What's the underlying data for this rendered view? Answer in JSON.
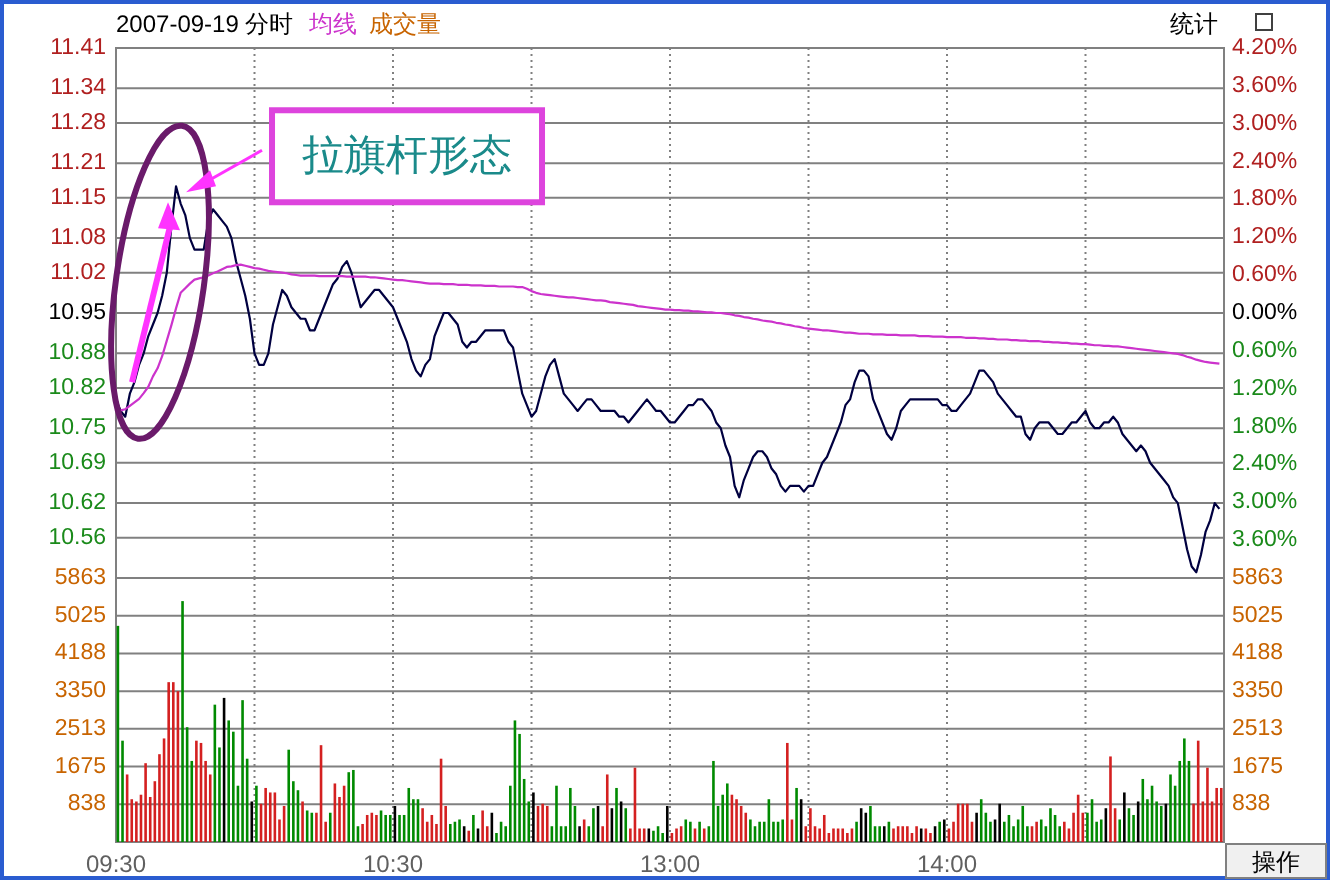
{
  "chart_data": [
    {
      "type": "line",
      "title": "2007-09-19 分时",
      "legend": "top left",
      "grid": true,
      "tick_labels": "y",
      "categories": [
        null,
        null,
        null,
        null,
        null,
        null,
        null,
        null,
        null,
        null,
        null,
        null,
        null,
        null,
        null,
        null,
        null,
        null,
        null,
        null,
        null,
        null,
        null,
        null,
        null,
        null,
        null,
        null,
        null,
        null,
        null,
        null,
        null,
        null,
        null,
        null,
        null,
        null,
        null,
        null,
        null,
        null,
        null,
        null,
        null,
        null,
        null,
        null,
        null,
        null,
        null,
        null,
        null,
        null,
        null,
        null,
        null,
        null,
        null,
        null,
        null,
        null,
        null,
        null,
        null,
        null,
        null,
        null,
        null,
        null,
        null,
        null,
        null,
        null,
        null,
        null,
        null,
        null,
        null,
        null,
        null,
        null,
        null,
        null,
        null,
        null,
        null,
        null,
        null,
        null,
        null,
        null,
        null,
        null,
        null,
        null,
        null,
        null,
        null,
        null,
        null,
        null,
        null,
        null,
        null,
        null,
        null,
        null,
        null,
        null,
        null,
        null,
        null,
        null,
        null,
        null,
        null,
        null,
        null,
        null,
        null,
        null,
        null,
        null,
        null,
        null,
        null,
        null,
        null,
        null,
        null,
        null,
        null,
        null,
        null,
        null,
        null,
        null,
        null,
        null,
        null,
        null,
        null,
        null,
        null,
        null,
        null,
        null,
        null,
        null,
        null,
        null,
        null,
        null,
        null,
        null,
        null,
        null,
        null,
        null,
        null,
        null,
        null,
        null,
        null,
        null,
        null,
        null,
        null,
        null,
        null,
        null,
        null,
        null,
        null,
        null,
        null,
        null,
        null,
        null,
        null,
        null,
        null,
        null,
        null,
        null,
        null,
        null,
        null,
        null,
        null,
        null,
        null,
        null,
        null,
        null,
        null,
        null,
        null,
        null,
        null,
        null,
        null,
        null,
        null,
        null,
        null,
        null,
        null,
        null,
        null,
        null,
        null,
        null,
        null,
        null,
        null,
        null,
        null,
        null,
        null,
        null,
        null,
        null,
        null,
        null,
        null,
        null,
        null,
        null,
        null,
        null,
        null,
        null,
        null,
        null,
        null,
        null,
        null,
        null
      ],
      "ylim": [
        10.49,
        11.41
      ],
      "yticks": [
        11.41,
        11.34,
        11.28,
        11.21,
        11.15,
        11.08,
        11.02,
        10.95,
        10.88,
        10.82,
        10.75,
        10.69,
        10.62,
        10.56
      ],
      "y2lim": [
        -4.2,
        4.2
      ],
      "y2ticks": [
        {
          "value": 4.2,
          "label": "4.20%"
        },
        {
          "value": 3.6,
          "label": "3.60%"
        },
        {
          "value": 3.0,
          "label": "3.00%"
        },
        {
          "value": 2.4,
          "label": "2.40%"
        },
        {
          "value": 1.8,
          "label": "1.80%"
        },
        {
          "value": 1.2,
          "label": "1.20%"
        },
        {
          "value": 0.6,
          "label": "0.60%"
        },
        {
          "value": 0,
          "label": "0.00%"
        },
        {
          "value": -0.6,
          "label": "0.60%"
        },
        {
          "value": -1.2,
          "label": "1.20%"
        },
        {
          "value": -1.8,
          "label": "1.80%"
        },
        {
          "value": -2.4,
          "label": "2.40%"
        },
        {
          "value": -3.0,
          "label": "3.00%"
        },
        {
          "value": -3.6,
          "label": "3.60%"
        }
      ],
      "series": [
        {
          "color": "#000040",
          "values": [
            10.8,
            10.78,
            10.77,
            10.81,
            10.83,
            10.86,
            10.88,
            10.91,
            10.93,
            10.95,
            10.98,
            11.02,
            11.1,
            11.17,
            11.14,
            11.12,
            11.08,
            11.06,
            11.06,
            11.06,
            11.11,
            11.13,
            11.12,
            11.11,
            11.1,
            11.08,
            11.04,
            11.01,
            10.98,
            10.94,
            10.88,
            10.86,
            10.86,
            10.88,
            10.93,
            10.96,
            10.99,
            10.98,
            10.96,
            10.95,
            10.94,
            10.94,
            10.92,
            10.92,
            10.94,
            10.96,
            10.98,
            11.0,
            11.01,
            11.03,
            11.04,
            11.02,
            10.99,
            10.96,
            10.97,
            10.98,
            10.99,
            10.99,
            10.98,
            10.97,
            10.96,
            10.94,
            10.92,
            10.9,
            10.87,
            10.85,
            10.84,
            10.86,
            10.87,
            10.91,
            10.93,
            10.95,
            10.95,
            10.94,
            10.93,
            10.9,
            10.89,
            10.9,
            10.9,
            10.91,
            10.92,
            10.92,
            10.92,
            10.92,
            10.92,
            10.9,
            10.89,
            10.85,
            10.81,
            10.79,
            10.77,
            10.78,
            10.81,
            10.84,
            10.86,
            10.87,
            10.84,
            10.81,
            10.8,
            10.79,
            10.78,
            10.79,
            10.8,
            10.8,
            10.79,
            10.78,
            10.78,
            10.78,
            10.78,
            10.77,
            10.77,
            10.76,
            10.77,
            10.78,
            10.79,
            10.8,
            10.79,
            10.78,
            10.78,
            10.77,
            10.76,
            10.76,
            10.77,
            10.78,
            10.79,
            10.79,
            10.8,
            10.8,
            10.79,
            10.78,
            10.76,
            10.75,
            10.72,
            10.7,
            10.65,
            10.63,
            10.66,
            10.68,
            10.7,
            10.71,
            10.71,
            10.7,
            10.68,
            10.67,
            10.65,
            10.64,
            10.65,
            10.65,
            10.65,
            10.64,
            10.65,
            10.65,
            10.67,
            10.69,
            10.7,
            10.72,
            10.74,
            10.76,
            10.79,
            10.8,
            10.83,
            10.85,
            10.85,
            10.84,
            10.8,
            10.78,
            10.76,
            10.74,
            10.73,
            10.75,
            10.78,
            10.79,
            10.8,
            10.8,
            10.8,
            10.8,
            10.8,
            10.8,
            10.8,
            10.79,
            10.79,
            10.78,
            10.78,
            10.79,
            10.8,
            10.81,
            10.83,
            10.85,
            10.85,
            10.84,
            10.83,
            10.81,
            10.8,
            10.79,
            10.78,
            10.77,
            10.77,
            10.74,
            10.73,
            10.75,
            10.76,
            10.76,
            10.76,
            10.75,
            10.74,
            10.74,
            10.75,
            10.76,
            10.76,
            10.77,
            10.78,
            10.76,
            10.75,
            10.75,
            10.76,
            10.76,
            10.77,
            10.76,
            10.74,
            10.73,
            10.72,
            10.71,
            10.72,
            10.71,
            10.69,
            10.68,
            10.67,
            10.66,
            10.65,
            10.63,
            10.62,
            10.58,
            10.54,
            10.51,
            10.5,
            10.53,
            10.57,
            10.59,
            10.62,
            10.61
          ]
        },
        {
          "name": "均线",
          "color": "#cc33cc",
          "values": [
            10.781,
            10.781,
            10.783,
            10.789,
            10.795,
            10.801,
            10.811,
            10.822,
            10.84,
            10.854,
            10.875,
            10.902,
            10.929,
            10.958,
            10.985,
            10.993,
            11.001,
            11.008,
            11.01,
            11.012,
            11.015,
            11.019,
            11.022,
            11.026,
            11.03,
            11.031,
            11.033,
            11.034,
            11.032,
            11.03,
            11.028,
            11.027,
            11.025,
            11.023,
            11.022,
            11.021,
            11.02,
            11.019,
            11.017,
            11.016,
            11.015,
            11.015,
            11.015,
            11.015,
            11.014,
            11.014,
            11.014,
            11.014,
            11.014,
            11.014,
            11.013,
            11.013,
            11.013,
            11.013,
            11.013,
            11.012,
            11.012,
            11.011,
            11.01,
            11.009,
            11.008,
            11.007,
            11.007,
            11.006,
            11.005,
            11.004,
            11.003,
            11.002,
            11.001,
            11.001,
            11.001,
            11.0,
            11.0,
            11.0,
            10.999,
            10.999,
            10.999,
            10.998,
            10.998,
            10.998,
            10.997,
            10.997,
            10.997,
            10.996,
            10.996,
            10.996,
            10.996,
            10.995,
            10.995,
            10.992,
            10.988,
            10.985,
            10.983,
            10.982,
            10.981,
            10.98,
            10.979,
            10.978,
            10.977,
            10.977,
            10.976,
            10.975,
            10.974,
            10.973,
            10.972,
            10.972,
            10.971,
            10.969,
            10.968,
            10.967,
            10.966,
            10.965,
            10.964,
            10.962,
            10.961,
            10.96,
            10.959,
            10.958,
            10.957,
            10.956,
            10.956,
            10.955,
            10.955,
            10.954,
            10.954,
            10.953,
            10.953,
            10.952,
            10.951,
            10.951,
            10.95,
            10.95,
            10.949,
            10.948,
            10.946,
            10.945,
            10.943,
            10.942,
            10.94,
            10.939,
            10.937,
            10.936,
            10.935,
            10.933,
            10.932,
            10.93,
            10.929,
            10.927,
            10.926,
            10.924,
            10.923,
            10.922,
            10.921,
            10.92,
            10.92,
            10.919,
            10.918,
            10.917,
            10.916,
            10.916,
            10.915,
            10.914,
            10.914,
            10.914,
            10.913,
            10.913,
            10.913,
            10.912,
            10.912,
            10.912,
            10.911,
            10.911,
            10.911,
            10.911,
            10.91,
            10.91,
            10.91,
            10.909,
            10.909,
            10.909,
            10.908,
            10.908,
            10.908,
            10.908,
            10.907,
            10.907,
            10.907,
            10.906,
            10.906,
            10.905,
            10.905,
            10.904,
            10.904,
            10.904,
            10.903,
            10.903,
            10.902,
            10.902,
            10.901,
            10.901,
            10.901,
            10.9,
            10.9,
            10.899,
            10.899,
            10.898,
            10.898,
            10.897,
            10.897,
            10.896,
            10.896,
            10.895,
            10.894,
            10.894,
            10.893,
            10.893,
            10.892,
            10.892,
            10.891,
            10.89,
            10.889,
            10.888,
            10.887,
            10.886,
            10.885,
            10.884,
            10.883,
            10.882,
            10.881,
            10.88,
            10.879,
            10.877,
            10.874,
            10.872,
            10.869,
            10.867,
            10.865,
            10.864,
            10.863,
            10.862
          ]
        }
      ],
      "annotations": [
        "拉旗杆形态",
        "统计"
      ]
    },
    {
      "type": "bar",
      "grid": true,
      "categories": [
        "09:30",
        null,
        null,
        null,
        null,
        null,
        null,
        null,
        null,
        null,
        null,
        null,
        null,
        null,
        null,
        null,
        null,
        null,
        null,
        null,
        null,
        null,
        null,
        null,
        null,
        null,
        null,
        null,
        null,
        null,
        null,
        null,
        null,
        null,
        null,
        null,
        null,
        null,
        null,
        null,
        null,
        null,
        null,
        null,
        null,
        null,
        null,
        null,
        null,
        null,
        null,
        null,
        null,
        null,
        null,
        null,
        null,
        null,
        null,
        null,
        "10:30",
        null,
        null,
        null,
        null,
        null,
        null,
        null,
        null,
        null,
        null,
        null,
        null,
        null,
        null,
        null,
        null,
        null,
        null,
        null,
        null,
        null,
        null,
        null,
        null,
        null,
        null,
        null,
        null,
        null,
        null,
        null,
        null,
        null,
        null,
        null,
        null,
        null,
        null,
        null,
        null,
        null,
        null,
        null,
        null,
        null,
        null,
        null,
        null,
        null,
        null,
        null,
        null,
        null,
        null,
        null,
        null,
        null,
        null,
        null,
        "13:00",
        null,
        null,
        null,
        null,
        null,
        null,
        null,
        null,
        null,
        null,
        null,
        null,
        null,
        null,
        null,
        null,
        null,
        null,
        null,
        null,
        null,
        null,
        null,
        null,
        null,
        null,
        null,
        null,
        null,
        null,
        null,
        null,
        null,
        null,
        null,
        null,
        null,
        null,
        null,
        null,
        null,
        null,
        null,
        null,
        null,
        null,
        null,
        null,
        null,
        null,
        null,
        null,
        null,
        null,
        null,
        null,
        null,
        null,
        null,
        "14:00",
        null,
        null,
        null,
        null,
        null,
        null,
        null,
        null,
        null,
        null,
        null,
        null,
        null,
        null,
        null,
        null,
        null,
        null,
        null,
        null,
        null,
        null,
        null,
        null,
        null,
        null,
        null,
        null,
        null,
        null,
        null,
        null,
        null,
        null,
        null,
        null,
        null,
        null,
        null,
        null,
        null,
        null,
        null,
        null,
        null,
        null,
        null,
        null,
        null,
        null,
        null,
        null,
        null,
        null,
        null,
        null,
        null,
        null,
        null
      ],
      "ylim": [
        0,
        5863
      ],
      "yticks": [
        838,
        1675,
        2513,
        3350,
        4188,
        5025,
        5863
      ],
      "y2lim": [
        0,
        5863
      ],
      "y2ticks": [
        838,
        1675,
        2513,
        3350,
        4188,
        5025,
        5863
      ],
      "values": [
        4800,
        2250,
        1500,
        950,
        900,
        1050,
        1750,
        1000,
        1350,
        1950,
        2300,
        3550,
        3550,
        3350,
        5350,
        2550,
        1800,
        2250,
        2200,
        1800,
        1500,
        3050,
        2100,
        3200,
        2700,
        2450,
        1250,
        3150,
        1850,
        900,
        1250,
        850,
        1200,
        1100,
        1100,
        500,
        800,
        2050,
        1350,
        1150,
        900,
        700,
        650,
        650,
        2150,
        450,
        650,
        1300,
        1000,
        1250,
        1550,
        1600,
        350,
        400,
        600,
        650,
        600,
        700,
        600,
        600,
        800,
        600,
        600,
        1200,
        950,
        950,
        750,
        450,
        600,
        400,
        1850,
        800,
        400,
        450,
        500,
        350,
        250,
        600,
        300,
        700,
        350,
        650,
        200,
        450,
        350,
        1250,
        2700,
        2400,
        1400,
        900,
        1100,
        800,
        850,
        800,
        350,
        1250,
        350,
        350,
        1200,
        800,
        350,
        500,
        350,
        750,
        800,
        350,
        1500,
        750,
        1200,
        900,
        750,
        300,
        1650,
        300,
        300,
        300,
        250,
        350,
        200,
        800,
        200,
        300,
        350,
        500,
        450,
        300,
        450,
        300,
        350,
        1800,
        800,
        1050,
        1300,
        1050,
        950,
        800,
        650,
        500,
        350,
        450,
        450,
        950,
        450,
        450,
        500,
        2200,
        500,
        1200,
        950,
        350,
        750,
        350,
        300,
        600,
        200,
        300,
        300,
        300,
        200,
        300,
        450,
        750,
        650,
        800,
        350,
        350,
        350,
        450,
        300,
        350,
        350,
        350,
        200,
        350,
        300,
        300,
        200,
        350,
        450,
        500,
        300,
        450,
        850,
        850,
        850,
        450,
        650,
        950,
        650,
        450,
        500,
        850,
        450,
        600,
        350,
        500,
        800,
        350,
        350,
        450,
        500,
        350,
        750,
        600,
        350,
        450,
        300,
        650,
        1050,
        650,
        650,
        950,
        450,
        500,
        750,
        1900,
        750,
        500,
        1100,
        750,
        600,
        900,
        1400,
        950,
        1250,
        900,
        800,
        850,
        1500,
        1250,
        1800,
        2300,
        1800,
        850,
        2250,
        900,
        1650,
        900,
        1200,
        1200
      ],
      "colors": [
        "#008a00",
        "#008a00",
        "#d42020",
        "#d42020",
        "#d42020",
        "#d42020",
        "#d42020",
        "#d42020",
        "#d42020",
        "#d42020",
        "#d42020",
        "#d42020",
        "#d42020",
        "#d42020",
        "#008a00",
        "#008a00",
        "#008a00",
        "#d42020",
        "#d42020",
        "#d42020",
        "#d42020",
        "#008a00",
        "#008a00",
        "#000000",
        "#008a00",
        "#008a00",
        "#008a00",
        "#008a00",
        "#008a00",
        "#000000",
        "#008a00",
        "#d42020",
        "#d42020",
        "#d42020",
        "#d42020",
        "#d42020",
        "#d42020",
        "#008a00",
        "#008a00",
        "#008a00",
        "#d42020",
        "#008a00",
        "#008a00",
        "#d42020",
        "#d42020",
        "#d42020",
        "#008a00",
        "#d42020",
        "#d42020",
        "#d42020",
        "#008a00",
        "#008a00",
        "#008a00",
        "#d42020",
        "#d42020",
        "#d42020",
        "#d42020",
        "#008a00",
        "#008a00",
        "#008a00",
        "#000000",
        "#008a00",
        "#008a00",
        "#008a00",
        "#008a00",
        "#008a00",
        "#d42020",
        "#d42020",
        "#d42020",
        "#d42020",
        "#d42020",
        "#d42020",
        "#008a00",
        "#008a00",
        "#008a00",
        "#000000",
        "#d42020",
        "#008a00",
        "#000000",
        "#d42020",
        "#d42020",
        "#000000",
        "#008a00",
        "#008a00",
        "#008a00",
        "#008a00",
        "#008a00",
        "#008a00",
        "#008a00",
        "#008a00",
        "#000000",
        "#d42020",
        "#d42020",
        "#d42020",
        "#008a00",
        "#008a00",
        "#008a00",
        "#008a00",
        "#008a00",
        "#008a00",
        "#000000",
        "#d42020",
        "#008a00",
        "#008a00",
        "#000000",
        "#d42020",
        "#d42020",
        "#000000",
        "#008a00",
        "#000000",
        "#008a00",
        "#d42020",
        "#d42020",
        "#d42020",
        "#d42020",
        "#000000",
        "#008a00",
        "#008a00",
        "#008a00",
        "#000000",
        "#d42020",
        "#d42020",
        "#d42020",
        "#008a00",
        "#008a00",
        "#d42020",
        "#008a00",
        "#d42020",
        "#008a00",
        "#008a00",
        "#008a00",
        "#008a00",
        "#008a00",
        "#d42020",
        "#d42020",
        "#d42020",
        "#d42020",
        "#008a00",
        "#008a00",
        "#008a00",
        "#008a00",
        "#008a00",
        "#008a00",
        "#008a00",
        "#008a00",
        "#d42020",
        "#d42020",
        "#008a00",
        "#000000",
        "#d42020",
        "#d42020",
        "#d42020",
        "#d42020",
        "#d42020",
        "#d42020",
        "#d42020",
        "#d42020",
        "#d42020",
        "#d42020",
        "#d42020",
        "#008a00",
        "#000000",
        "#000000",
        "#008a00",
        "#008a00",
        "#008a00",
        "#000000",
        "#008a00",
        "#d42020",
        "#d42020",
        "#d42020",
        "#d42020",
        "#d42020",
        "#d42020",
        "#000000",
        "#d42020",
        "#d42020",
        "#000000",
        "#008a00",
        "#000000",
        "#d42020",
        "#d42020",
        "#d42020",
        "#d42020",
        "#d42020",
        "#d42020",
        "#000000",
        "#008a00",
        "#008a00",
        "#008a00",
        "#000000",
        "#000000",
        "#008a00",
        "#008a00",
        "#008a00",
        "#008a00",
        "#008a00",
        "#008a00",
        "#d42020",
        "#d42020",
        "#008a00",
        "#008a00",
        "#008a00",
        "#008a00",
        "#008a00",
        "#d42020",
        "#d42020",
        "#d42020",
        "#d42020",
        "#d42020",
        "#008a00",
        "#008a00",
        "#008a00",
        "#008a00",
        "#000000",
        "#d42020",
        "#d42020",
        "#008a00",
        "#000000",
        "#008a00",
        "#008a00",
        "#000000",
        "#008a00",
        "#008a00",
        "#008a00",
        "#008a00",
        "#008a00",
        "#000000",
        "#008a00",
        "#008a00",
        "#008a00",
        "#008a00",
        "#008a00",
        "#d42020",
        "#d42020",
        "#d42020",
        "#d42020",
        "#d42020",
        "#d42020",
        "#d42020"
      ],
      "annotations": [
        "成交量",
        "操作"
      ]
    }
  ]
}
